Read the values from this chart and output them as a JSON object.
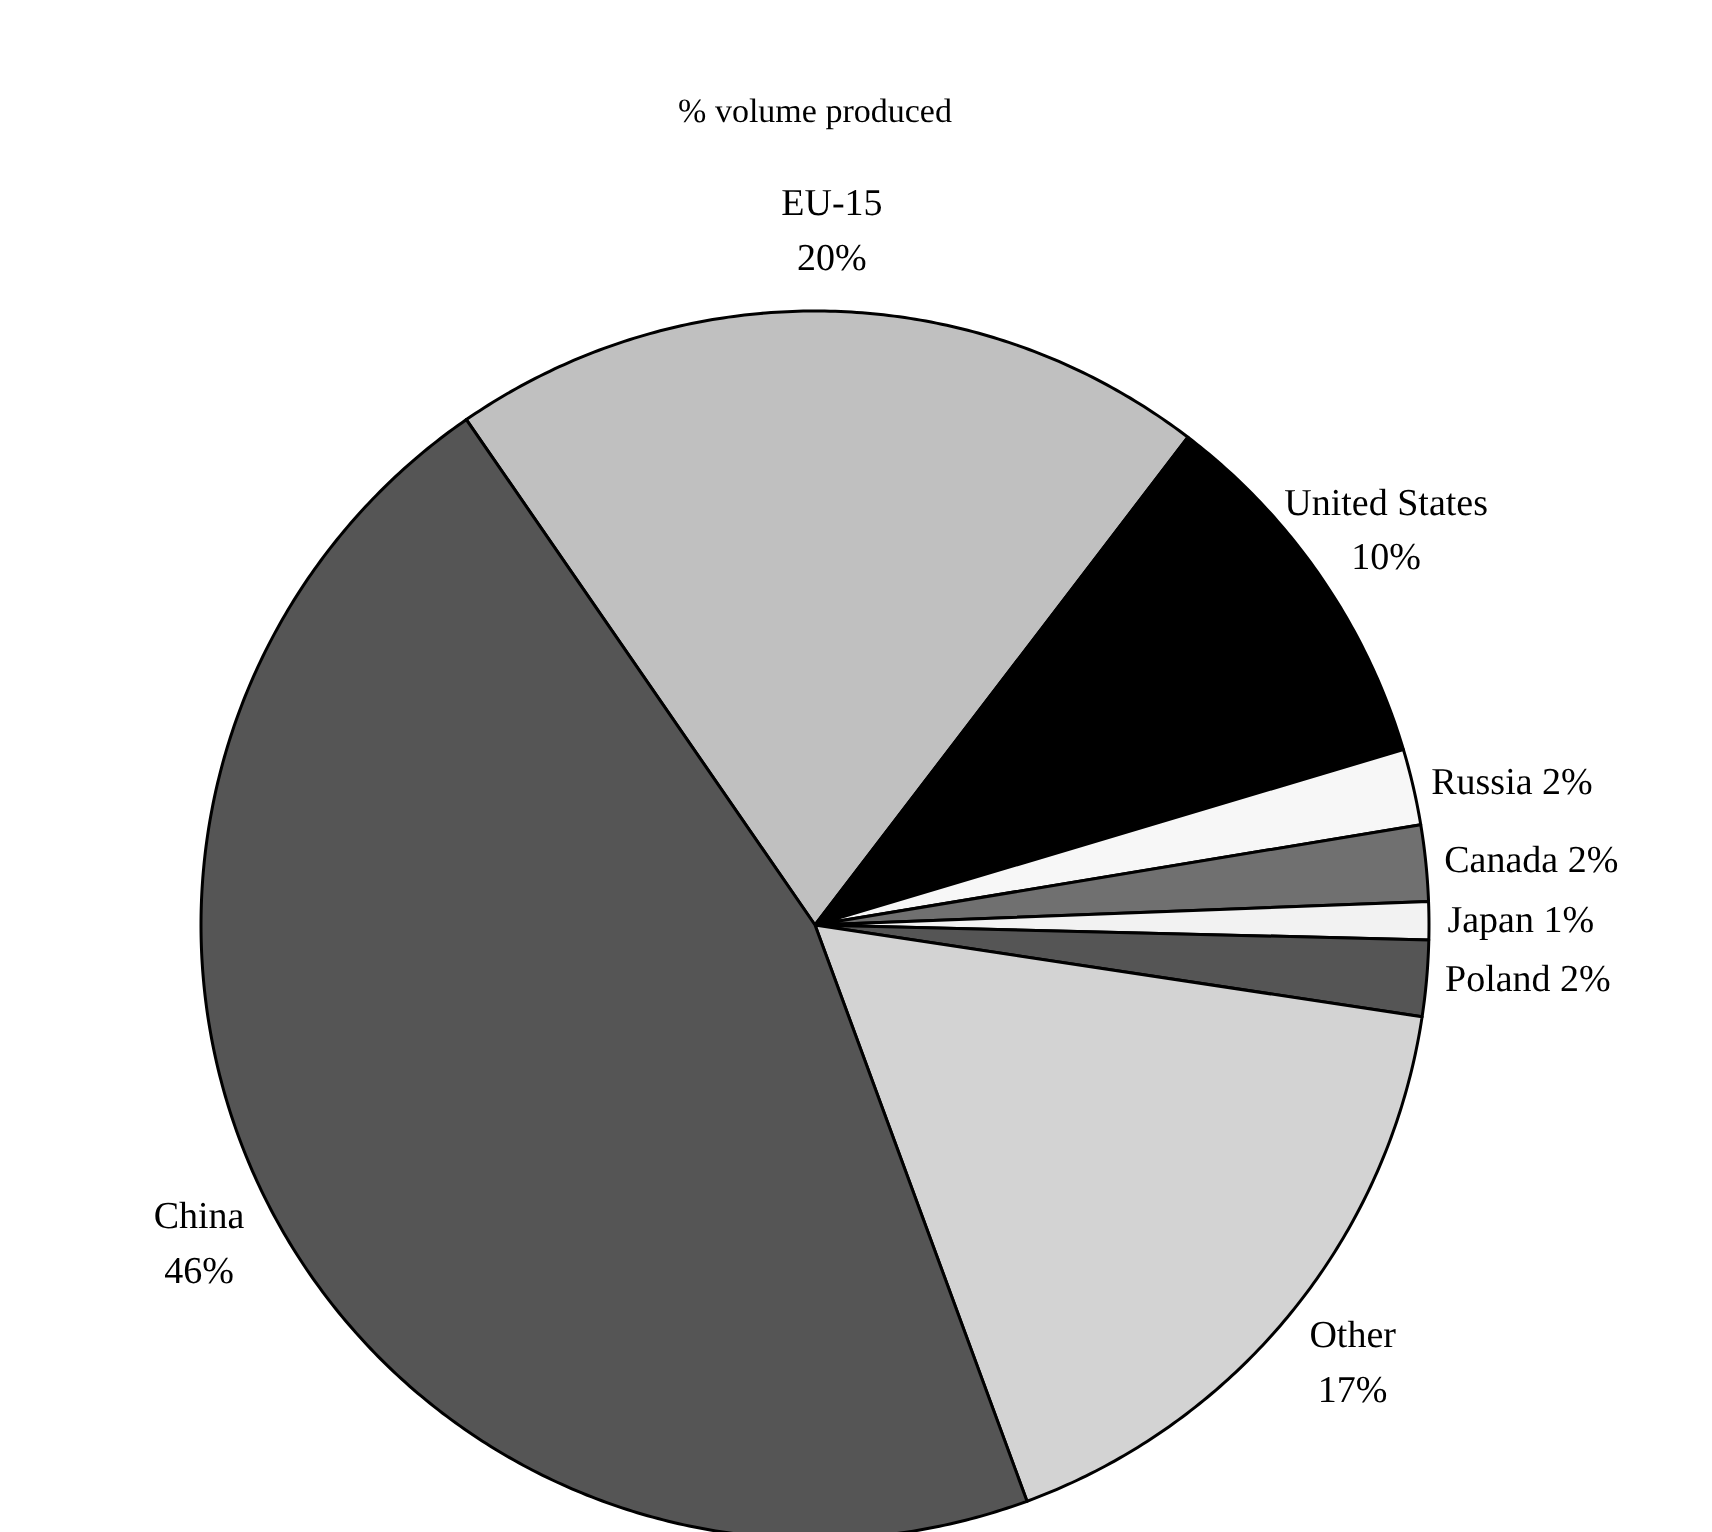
{
  "chart_data": {
    "type": "pie",
    "title": "% volume produced",
    "categories": [
      "EU-15",
      "United States",
      "Russia",
      "Canada",
      "Japan",
      "Poland",
      "Other",
      "China"
    ],
    "values": [
      20,
      10,
      2,
      2,
      1,
      2,
      17,
      46
    ],
    "colors": [
      "#c0c0c0",
      "#000000",
      "#f7f7f7",
      "#707070",
      "#f2f2f2",
      "#555555",
      "#d3d3d3",
      "#555555"
    ],
    "value_labels": [
      "20%",
      "10%",
      "2%",
      "2%",
      "1%",
      "2%",
      "17%",
      "46%"
    ]
  }
}
